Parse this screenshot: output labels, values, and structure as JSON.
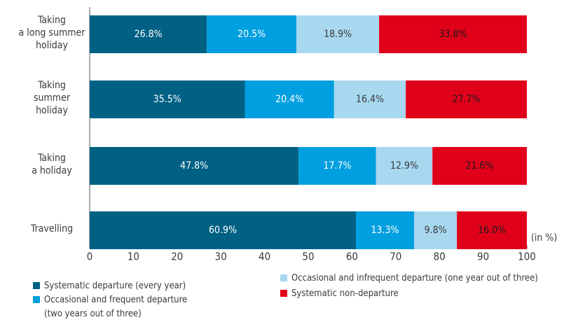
{
  "chart_data": {
    "type": "stacked-barh",
    "categories": [
      "Taking\na long summer\nholiday",
      "Taking\nsummer\nholiday",
      "Taking\na holiday",
      "Travelling"
    ],
    "series": [
      {
        "name": "Systematic departure (every year)",
        "color": "#006184",
        "label_color": "#ffffff",
        "values": [
          26.8,
          35.5,
          47.8,
          60.9
        ],
        "value_labels": [
          "26.8%",
          "35.5%",
          "47.8%",
          "60.9%"
        ]
      },
      {
        "name": "Occasional and frequent departure\n(two years out of three)",
        "color": "#009fdf",
        "label_color": "#ffffff",
        "values": [
          20.5,
          20.4,
          17.7,
          13.3
        ],
        "value_labels": [
          "20.5%",
          "20.4%",
          "17.7%",
          "13.3%"
        ]
      },
      {
        "name": "Occasional and infrequent departure (one year out of three)",
        "color": "#a7d8f0",
        "label_color": "#3a3a3a",
        "values": [
          18.9,
          16.4,
          12.9,
          9.8
        ],
        "value_labels": [
          "18.9%",
          "16.4%",
          "12.9%",
          "9.8%"
        ]
      },
      {
        "name": "Systematic non-departure",
        "color": "#e1001a",
        "label_color": "#1a1a1a",
        "values": [
          33.8,
          27.7,
          21.6,
          16.0
        ],
        "value_labels": [
          "33.8%",
          "27.7%",
          "21.6%",
          "16.0%"
        ]
      }
    ],
    "x_label": "(in %)",
    "xlim": [
      0,
      100
    ],
    "xticks": [
      0,
      10,
      20,
      30,
      40,
      50,
      60,
      70,
      80,
      90,
      100
    ]
  }
}
